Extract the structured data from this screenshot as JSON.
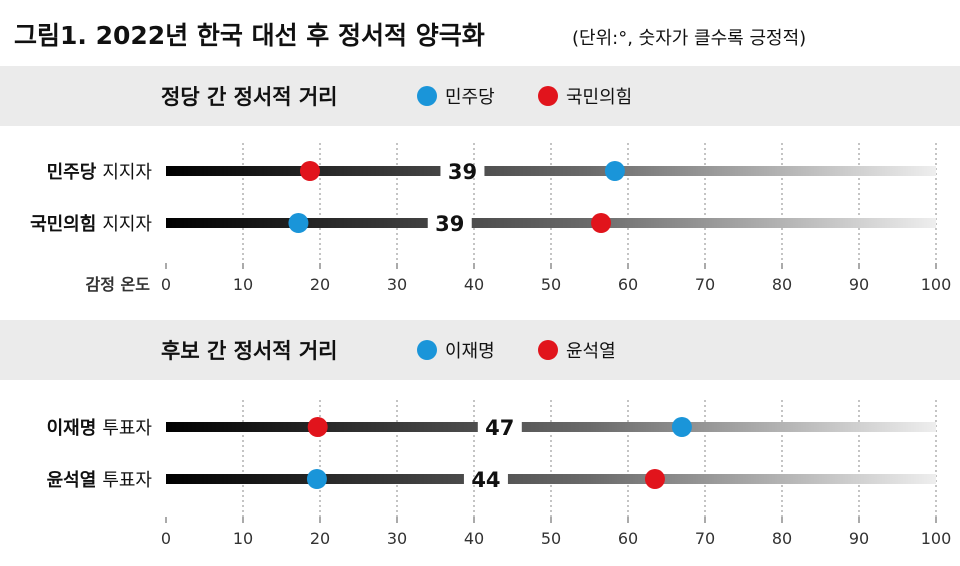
{
  "header": {
    "title": "그림1. 2022년 한국 대선 후 정서적 양극화",
    "note": "(단위:°, 숫자가 클수록 긍정적)"
  },
  "chart_data": [
    {
      "type": "dot",
      "title": "정당 간 정서적 거리",
      "xlabel": "감정 온도",
      "xlim": [
        0,
        100
      ],
      "xticks": [
        0,
        10,
        20,
        30,
        40,
        50,
        60,
        70,
        80,
        90,
        100
      ],
      "grid": true,
      "legend": [
        {
          "name": "민주당",
          "color": "#1a95d9"
        },
        {
          "name": "국민의힘",
          "color": "#e1141c"
        }
      ],
      "rows": [
        {
          "group": "민주당",
          "suffix": "지지자",
          "blue": 58.3,
          "red": 18.7,
          "gap": "39"
        },
        {
          "group": "국민의힘",
          "suffix": "지지자",
          "blue": 17.2,
          "red": 56.5,
          "gap": "39"
        }
      ]
    },
    {
      "type": "dot",
      "title": "후보 간 정서적 거리",
      "xlabel": "",
      "xlim": [
        0,
        100
      ],
      "xticks": [
        0,
        10,
        20,
        30,
        40,
        50,
        60,
        70,
        80,
        90,
        100
      ],
      "grid": true,
      "legend": [
        {
          "name": "이재명",
          "color": "#1a95d9"
        },
        {
          "name": "윤석열",
          "color": "#e1141c"
        }
      ],
      "rows": [
        {
          "group": "이재명",
          "suffix": "투표자",
          "blue": 67.0,
          "red": 19.7,
          "gap": "47"
        },
        {
          "group": "윤석열",
          "suffix": "투표자",
          "blue": 19.6,
          "red": 63.5,
          "gap": "44"
        }
      ]
    }
  ]
}
